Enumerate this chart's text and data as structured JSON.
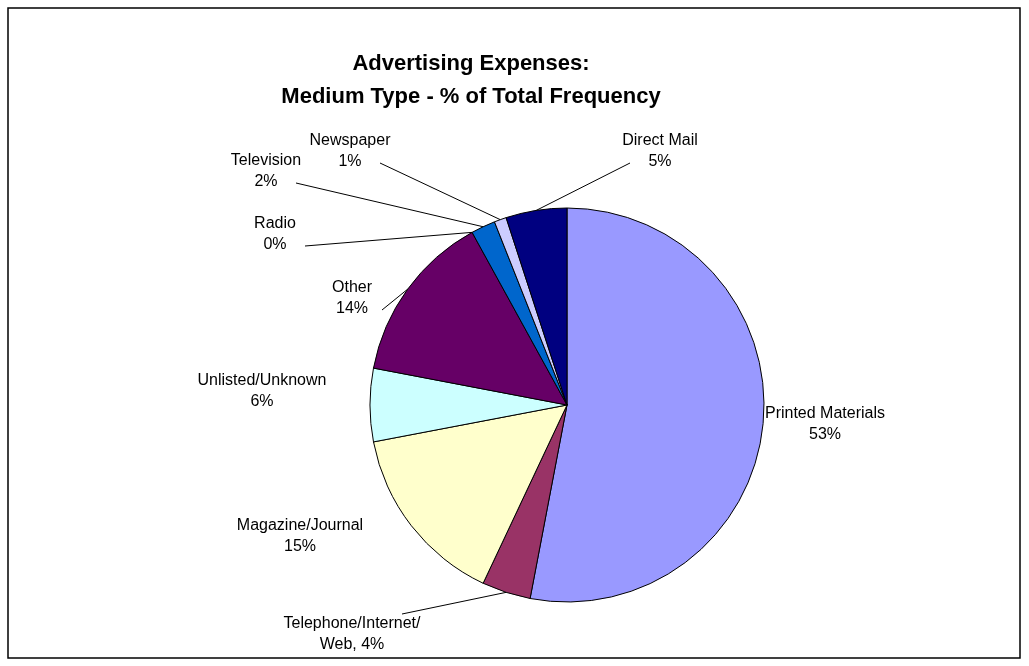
{
  "chart_data": {
    "type": "pie",
    "title": "Advertising Expenses:\nMedium Type - % of Total Frequency",
    "categories": [
      "Printed Materials",
      "Telephone/Internet/Web",
      "Magazine/Journal",
      "Unlisted/Unknown",
      "Other",
      "Radio",
      "Television",
      "Newspaper",
      "Direct Mail"
    ],
    "values": [
      53,
      4,
      15,
      6,
      14,
      0,
      2,
      1,
      5
    ],
    "colors": [
      "#9999ff",
      "#993366",
      "#ffffcc",
      "#ccffff",
      "#660066",
      null,
      "#0066cc",
      "#ccccff",
      "#000080"
    ],
    "value_labels": [
      "53%",
      "4%",
      "15%",
      "6%",
      "14%",
      "0%",
      "2%",
      "1%",
      "5%"
    ]
  }
}
